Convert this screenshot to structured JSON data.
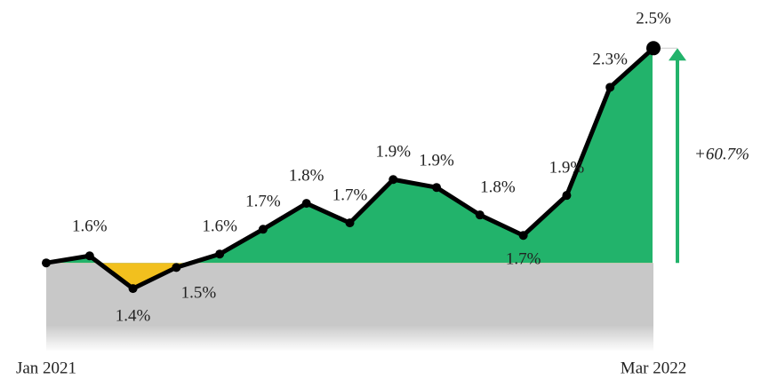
{
  "chart_data": {
    "type": "line",
    "categories": [
      "Jan 2021",
      null,
      null,
      null,
      null,
      null,
      null,
      null,
      null,
      null,
      null,
      null,
      null,
      null,
      "Mar 2022"
    ],
    "series": [
      {
        "color": "#000000",
        "values": [
          1.556,
          1.587,
          1.443,
          1.536,
          1.595,
          1.704,
          1.818,
          1.732,
          1.923,
          1.888,
          1.767,
          1.677,
          1.853,
          2.329,
          2.501
        ],
        "value_labels": [
          null,
          "1.6%",
          "1.4%",
          "1.5%",
          "1.6%",
          "1.7%",
          "1.8%",
          "1.7%",
          "1.9%",
          "1.9%",
          "1.8%",
          "1.7%",
          "1.9%",
          "2.3%",
          "2.5%"
        ]
      }
    ],
    "ylim": [
      1.17,
      2.51
    ],
    "above_color": "#22b36b",
    "below_color": "#f2c01e",
    "base_color": "#c8c8c8",
    "annotation": "+60.7%"
  }
}
